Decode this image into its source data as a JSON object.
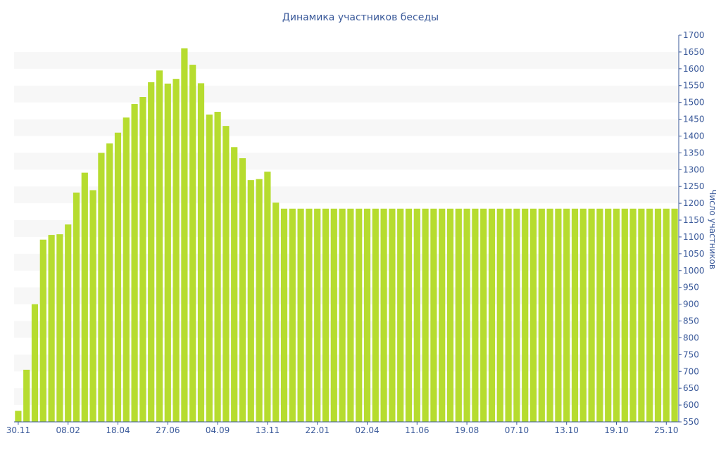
{
  "chart_data": {
    "type": "bar",
    "title": "Динамика участников беседы",
    "xlabel": "",
    "ylabel": "Число участников",
    "y_axis_side": "right",
    "ylim": [
      550,
      1700
    ],
    "y_ticks": [
      550,
      600,
      650,
      700,
      750,
      800,
      850,
      900,
      950,
      1000,
      1050,
      1100,
      1150,
      1200,
      1250,
      1300,
      1350,
      1400,
      1450,
      1500,
      1550,
      1600,
      1650,
      1700
    ],
    "x_tick_labels": [
      {
        "index": 0,
        "label": "30.11"
      },
      {
        "index": 6,
        "label": "08.02"
      },
      {
        "index": 12,
        "label": "18.04"
      },
      {
        "index": 18,
        "label": "27.06"
      },
      {
        "index": 24,
        "label": "04.09"
      },
      {
        "index": 30,
        "label": "13.11"
      },
      {
        "index": 36,
        "label": "22.01"
      },
      {
        "index": 42,
        "label": "02.04"
      },
      {
        "index": 48,
        "label": "11.06"
      },
      {
        "index": 54,
        "label": "19.08"
      },
      {
        "index": 60,
        "label": "07.10"
      },
      {
        "index": 66,
        "label": "13.10"
      },
      {
        "index": 72,
        "label": "19.10"
      },
      {
        "index": 78,
        "label": "25.10"
      }
    ],
    "bar_color": "#b6dc2f",
    "grid": "alternating horizontal bands",
    "band_color": "#f7f7f7",
    "text_color": "#3b5a9a",
    "values": [
      583,
      705,
      900,
      1092,
      1106,
      1108,
      1137,
      1232,
      1291,
      1239,
      1350,
      1378,
      1410,
      1455,
      1495,
      1516,
      1560,
      1595,
      1556,
      1570,
      1661,
      1612,
      1557,
      1464,
      1472,
      1430,
      1367,
      1334,
      1269,
      1272,
      1294,
      1202,
      1184,
      1184,
      1184,
      1184,
      1184,
      1184,
      1184,
      1184,
      1184,
      1184,
      1184,
      1184,
      1184,
      1184,
      1184,
      1184,
      1184,
      1184,
      1184,
      1184,
      1184,
      1184,
      1184,
      1184,
      1184,
      1184,
      1184,
      1184,
      1184,
      1184,
      1184,
      1184,
      1184,
      1184,
      1184,
      1184,
      1184,
      1184,
      1184,
      1184,
      1184,
      1184,
      1184,
      1184,
      1184,
      1184,
      1184,
      1184
    ]
  }
}
